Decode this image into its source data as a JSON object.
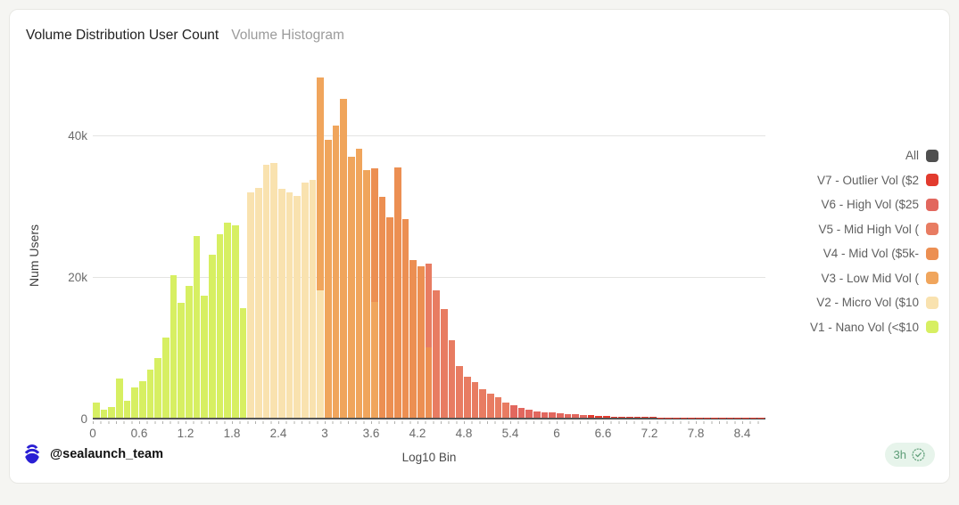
{
  "page": {
    "background": "#f5f5f2",
    "card_background": "#ffffff",
    "card_border": "#e8e8e4"
  },
  "header": {
    "title": "Volume Distribution User Count",
    "tab": "Volume Histogram"
  },
  "footer": {
    "handle": "@sealaunch_team",
    "badge_time": "3h",
    "logo": "sealaunch-logo",
    "logo_color": "#2a1fd4",
    "badge_bg": "#e7f4eb",
    "badge_color": "#5d9d77"
  },
  "colors": {
    "All": "#4f4f4f",
    "V7": "#e23b2e",
    "V6": "#e2675e",
    "V5": "#e87c62",
    "V4": "#ec8f52",
    "V3": "#f0a55c",
    "V2": "#f9e2af",
    "V1": "#d7ef62"
  },
  "legend": {
    "position": "right",
    "entries": [
      {
        "key": "All",
        "label": "All"
      },
      {
        "key": "V7",
        "label": "V7 - Outlier Vol ($2"
      },
      {
        "key": "V6",
        "label": "V6 - High Vol ($25"
      },
      {
        "key": "V5",
        "label": "V5 - Mid High Vol ("
      },
      {
        "key": "V4",
        "label": "V4 - Mid Vol ($5k-"
      },
      {
        "key": "V3",
        "label": "V3 - Low Mid Vol ("
      },
      {
        "key": "V2",
        "label": "V2 - Micro Vol ($10"
      },
      {
        "key": "V1",
        "label": "V1 - Nano Vol (<$10"
      }
    ]
  },
  "chart_data": {
    "type": "bar",
    "title": "Volume Distribution User Count",
    "xlabel": "Log10 Bin",
    "ylabel": "Num Users",
    "bin_width": 0.1,
    "xlim": [
      0,
      8.7
    ],
    "ylim_thousands": [
      0,
      48.4
    ],
    "grid": "horizontal",
    "yticks": [
      {
        "v": 0,
        "label": "0"
      },
      {
        "v": 20,
        "label": "20k"
      },
      {
        "v": 40,
        "label": "40k"
      }
    ],
    "xticks": [
      "0",
      "0.6",
      "1.2",
      "1.8",
      "2.4",
      "3",
      "3.6",
      "4.2",
      "4.8",
      "5.4",
      "6",
      "6.6",
      "7.2",
      "7.8",
      "8.4"
    ],
    "bars_note": "each bar = [bin_start_log10, users_thousands, category, front_users_thousands?, front_category?]; front_* = shorter overlay bar drawn in front at same x",
    "bars": [
      [
        0.0,
        2.1,
        "V1"
      ],
      [
        0.1,
        1.1,
        "V1"
      ],
      [
        0.2,
        1.5,
        "V1"
      ],
      [
        0.3,
        5.5,
        "V1"
      ],
      [
        0.4,
        2.4,
        "V1"
      ],
      [
        0.5,
        4.3,
        "V1"
      ],
      [
        0.6,
        5.2,
        "V1"
      ],
      [
        0.7,
        6.8,
        "V1"
      ],
      [
        0.8,
        8.4,
        "V1"
      ],
      [
        0.9,
        11.3,
        "V1"
      ],
      [
        1.0,
        20.1,
        "V1"
      ],
      [
        1.1,
        16.2,
        "V1"
      ],
      [
        1.2,
        18.6,
        "V1"
      ],
      [
        1.3,
        25.6,
        "V1"
      ],
      [
        1.4,
        17.2,
        "V1"
      ],
      [
        1.5,
        23.0,
        "V1"
      ],
      [
        1.6,
        25.9,
        "V1"
      ],
      [
        1.7,
        27.6,
        "V1"
      ],
      [
        1.8,
        27.2,
        "V1"
      ],
      [
        1.9,
        15.5,
        "V1"
      ],
      [
        2.0,
        31.8,
        "V2"
      ],
      [
        2.1,
        32.4,
        "V2"
      ],
      [
        2.2,
        35.7,
        "V2"
      ],
      [
        2.3,
        35.9,
        "V2"
      ],
      [
        2.4,
        32.3,
        "V2"
      ],
      [
        2.5,
        31.8,
        "V2"
      ],
      [
        2.6,
        31.3,
        "V2"
      ],
      [
        2.7,
        33.2,
        "V2"
      ],
      [
        2.8,
        33.6,
        "V2"
      ],
      [
        2.9,
        48.0,
        "V3",
        18.0,
        "V2"
      ],
      [
        3.0,
        39.2,
        "V3"
      ],
      [
        3.1,
        41.3,
        "V3"
      ],
      [
        3.2,
        45.0,
        "V3"
      ],
      [
        3.3,
        36.9,
        "V3"
      ],
      [
        3.4,
        38.0,
        "V3"
      ],
      [
        3.5,
        35.0,
        "V3"
      ],
      [
        3.6,
        35.2,
        "V4",
        16.3,
        "V3"
      ],
      [
        3.7,
        31.2,
        "V4"
      ],
      [
        3.8,
        28.3,
        "V4"
      ],
      [
        3.9,
        35.3,
        "V4"
      ],
      [
        4.0,
        28.0,
        "V4"
      ],
      [
        4.1,
        22.2,
        "V4"
      ],
      [
        4.2,
        21.4,
        "V4"
      ],
      [
        4.3,
        21.7,
        "V5",
        10.0,
        "V4"
      ],
      [
        4.4,
        18.0,
        "V5"
      ],
      [
        4.5,
        15.3,
        "V5"
      ],
      [
        4.6,
        10.9,
        "V5"
      ],
      [
        4.7,
        7.3,
        "V5"
      ],
      [
        4.8,
        5.8,
        "V5"
      ],
      [
        4.9,
        5.0,
        "V5"
      ],
      [
        5.0,
        4.0,
        "V5"
      ],
      [
        5.1,
        3.4,
        "V5"
      ],
      [
        5.2,
        2.9,
        "V5"
      ],
      [
        5.3,
        2.2,
        "V5"
      ],
      [
        5.4,
        1.8,
        "V6"
      ],
      [
        5.5,
        1.4,
        "V6"
      ],
      [
        5.6,
        1.1,
        "V6"
      ],
      [
        5.7,
        0.9,
        "V6"
      ],
      [
        5.8,
        0.8,
        "V6"
      ],
      [
        5.9,
        0.7,
        "V6"
      ],
      [
        6.0,
        0.6,
        "V6"
      ],
      [
        6.1,
        0.5,
        "V6"
      ],
      [
        6.2,
        0.45,
        "V6"
      ],
      [
        6.3,
        0.4,
        "V6"
      ],
      [
        6.4,
        0.33,
        "V7"
      ],
      [
        6.5,
        0.27,
        "V7"
      ],
      [
        6.6,
        0.22,
        "V7"
      ],
      [
        6.7,
        0.18,
        "V7"
      ],
      [
        6.8,
        0.15,
        "V7"
      ],
      [
        6.9,
        0.12,
        "V7"
      ],
      [
        7.0,
        0.1,
        "V7"
      ],
      [
        7.1,
        0.08,
        "V7"
      ],
      [
        7.2,
        0.07,
        "V7"
      ],
      [
        7.3,
        0.06,
        "V7"
      ],
      [
        7.4,
        0.05,
        "V7"
      ],
      [
        7.5,
        0.05,
        "V7"
      ],
      [
        7.6,
        0.04,
        "V7"
      ],
      [
        7.7,
        0.04,
        "V7"
      ],
      [
        7.8,
        0.03,
        "V7"
      ],
      [
        7.9,
        0.03,
        "V7"
      ],
      [
        8.0,
        0.03,
        "V7"
      ],
      [
        8.1,
        0.02,
        "V7"
      ],
      [
        8.2,
        0.02,
        "V7"
      ],
      [
        8.3,
        0.02,
        "V7"
      ],
      [
        8.4,
        0.02,
        "V7"
      ],
      [
        8.5,
        0.02,
        "V7"
      ],
      [
        8.6,
        0.02,
        "V7"
      ]
    ]
  }
}
